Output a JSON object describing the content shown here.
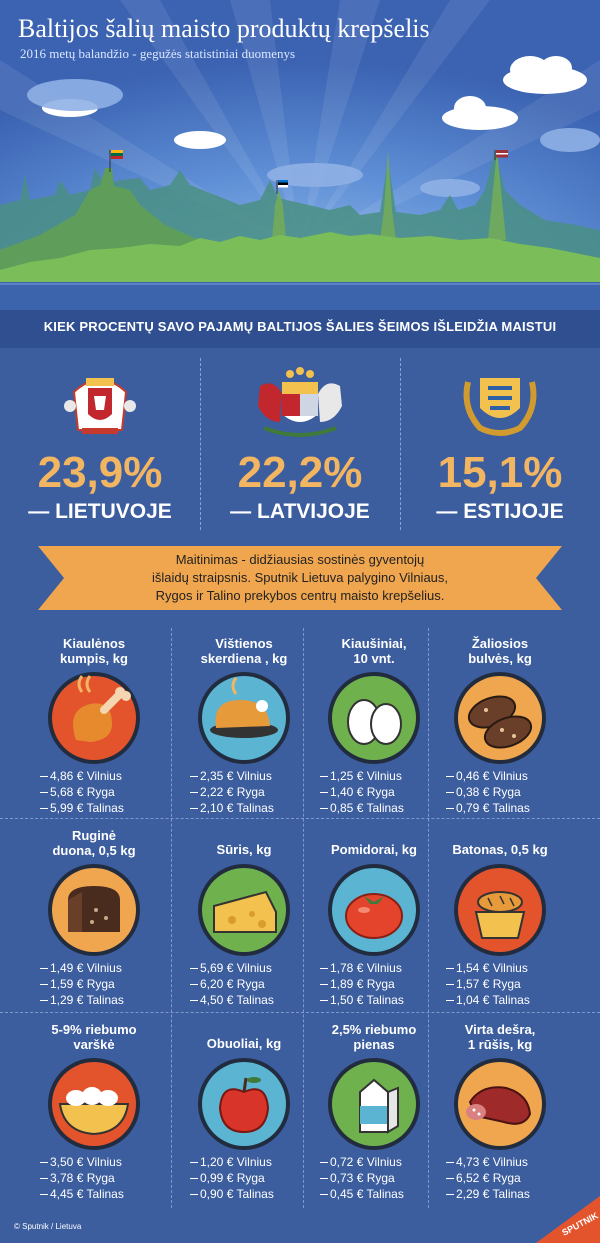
{
  "header": {
    "title": "Baltijos šalių maisto produktų krepšelis",
    "subtitle": "2016 metų balandžio - gegužės statistiniai duomenys"
  },
  "band": {
    "text": "KIEK PROCENTŲ SAVO PAJAMŲ BALTIJOS ŠALIES ŠEIMOS IŠLEIDŽIA MAISTUI"
  },
  "stats": [
    {
      "pct": "23,9%",
      "country": "— LIETUVOJE"
    },
    {
      "pct": "22,2%",
      "country": "— LATVIJOJE"
    },
    {
      "pct": "15,1%",
      "country": "— ESTIJOJE"
    }
  ],
  "ribbon": {
    "line1": "Maitinimas - didžiausias sostinės gyventojų",
    "line2": "išlaidų straipsnis.  Sputnik Lietuva palygino Vilniaus,",
    "line3": "Rygos ir Talino prekybos centrų maisto krepšelius."
  },
  "products": [
    {
      "name": [
        "Kiaulėnos",
        "kumpis, kg"
      ],
      "icon": "ham-leg-icon",
      "color": "#e4542c",
      "prices": [
        "4,86 € Vilnius",
        "5,68 € Ryga",
        "5,99 € Talinas"
      ]
    },
    {
      "name": [
        "Vištienos",
        "skerdiena , kg"
      ],
      "icon": "roast-chicken-icon",
      "color": "#5ab4d2",
      "prices": [
        "2,35 € Vilnius",
        "2,22 € Ryga",
        "2,10 € Talinas"
      ]
    },
    {
      "name": [
        "Kiaušiniai,",
        "10 vnt."
      ],
      "icon": "eggs-icon",
      "color": "#6fb24d",
      "prices": [
        "1,25 € Vilnius",
        "1,40 € Ryga",
        "0,85 € Talinas"
      ]
    },
    {
      "name": [
        "Žaliosios",
        "bulvės, kg"
      ],
      "icon": "potatoes-icon",
      "color": "#f0a64e",
      "prices": [
        "0,46 € Vilnius",
        "0,38 € Ryga",
        "0,79 € Talinas"
      ]
    },
    {
      "name": [
        "Ruginė",
        "duona, 0,5 kg"
      ],
      "icon": "rye-bread-icon",
      "color": "#f0a64e",
      "prices": [
        "1,49 € Vilnius",
        "1,59 € Ryga",
        "1,29 € Talinas"
      ]
    },
    {
      "name": [
        "Sūris, kg"
      ],
      "icon": "cheese-icon",
      "color": "#6fb24d",
      "prices": [
        "5,69 € Vilnius",
        "6,20 € Ryga",
        "4,50 € Talinas"
      ]
    },
    {
      "name": [
        "Pomidorai, kg"
      ],
      "icon": "tomato-icon",
      "color": "#5ab4d2",
      "prices": [
        "1,78 € Vilnius",
        "1,89 € Ryga",
        "1,50 € Talinas"
      ]
    },
    {
      "name": [
        "Batonas, 0,5 kg"
      ],
      "icon": "bread-basket-icon",
      "color": "#e4542c",
      "prices": [
        "1,54 € Vilnius",
        "1,57 € Ryga",
        "1,04 € Talinas"
      ]
    },
    {
      "name": [
        "5-9% riebumo",
        "varškė"
      ],
      "icon": "cottage-cheese-icon",
      "color": "#e4542c",
      "prices": [
        "3,50 € Vilnius",
        "3,78 € Ryga",
        "4,45 € Talinas"
      ]
    },
    {
      "name": [
        "Obuoliai, kg"
      ],
      "icon": "apple-icon",
      "color": "#5ab4d2",
      "prices": [
        "1,20 € Vilnius",
        "0,99 € Ryga",
        "0,90 € Talinas"
      ]
    },
    {
      "name": [
        "2,5% riebumo",
        "pienas"
      ],
      "icon": "milk-carton-icon",
      "color": "#6fb24d",
      "prices": [
        "0,72 € Vilnius",
        "0,73 € Ryga",
        "0,45 € Talinas"
      ]
    },
    {
      "name": [
        "Virta dešra,",
        "1 rūšis, kg"
      ],
      "icon": "sausage-icon",
      "color": "#f0a64e",
      "prices": [
        "4,73 € Vilnius",
        "6,52 € Ryga",
        "2,29 € Talinas"
      ]
    }
  ],
  "footer": {
    "credit": "© Sputnik / Lietuva",
    "logo": "SPUTNIK"
  }
}
